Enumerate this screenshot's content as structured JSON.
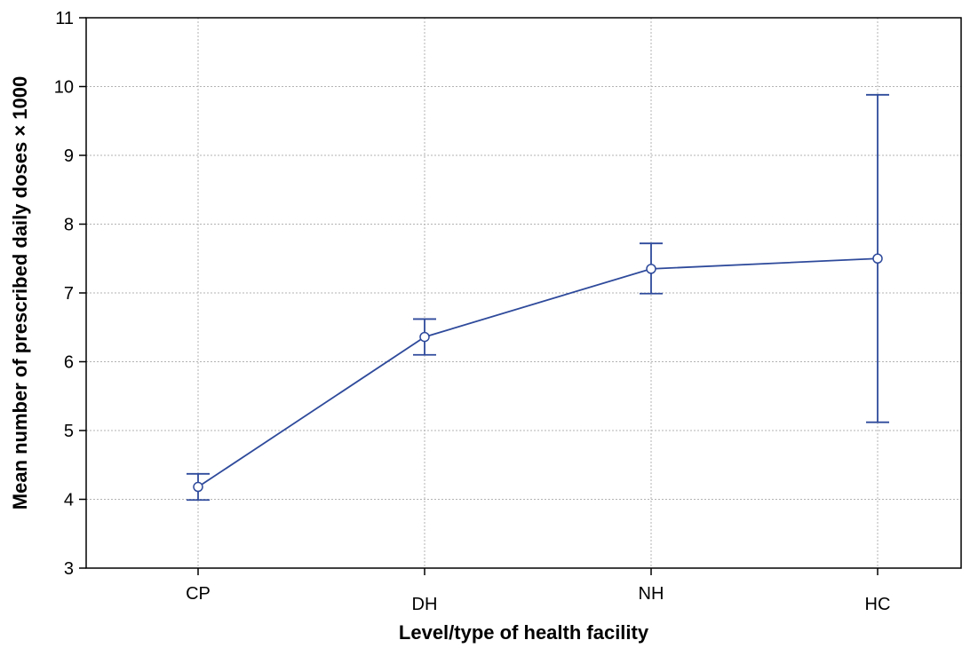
{
  "chart_data": {
    "type": "line",
    "title": "",
    "xlabel": "Level/type of health facility",
    "ylabel": "Mean number of prescribed daily doses × 1000",
    "categories": [
      "CP",
      "DH",
      "NH",
      "HC"
    ],
    "series": [
      {
        "values": [
          4.18,
          6.36,
          7.35,
          7.5
        ],
        "error_low": [
          3.99,
          6.1,
          6.99,
          5.12
        ],
        "error_high": [
          4.37,
          6.62,
          7.72,
          9.88
        ]
      }
    ],
    "ylim": [
      3,
      11
    ],
    "yticks": [
      3,
      4,
      5,
      6,
      7,
      8,
      9,
      10,
      11
    ],
    "grid": true,
    "legend": "none",
    "colors": {
      "series": "#2e4a9b",
      "marker_fill": "#ffffff",
      "grid": "#b3b3b3",
      "axis": "#000000"
    }
  }
}
